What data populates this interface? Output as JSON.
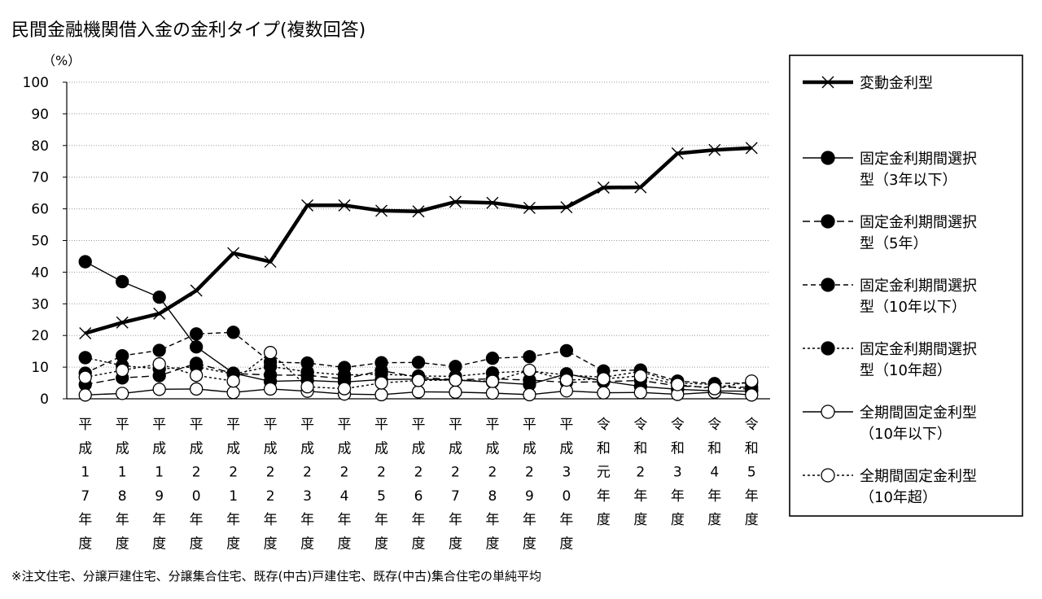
{
  "chart_data": {
    "type": "line",
    "title": "民間金融機関借入金の金利タイプ(複数回答)",
    "ylabel": "（%）",
    "ylim": [
      0,
      100
    ],
    "yticks": [
      0,
      10,
      20,
      30,
      40,
      50,
      60,
      70,
      80,
      90,
      100
    ],
    "grid": true,
    "legend_position": "right",
    "categories": [
      "平成17年度",
      "平成18年度",
      "平成19年度",
      "平成20年度",
      "平成21年度",
      "平成22年度",
      "平成23年度",
      "平成24年度",
      "平成25年度",
      "平成26年度",
      "平成27年度",
      "平成28年度",
      "平成29年度",
      "平成30年度",
      "令和元年度",
      "令和2年度",
      "令和3年度",
      "令和4年度",
      "令和5年度"
    ],
    "category_labels": [
      [
        "平",
        "成",
        "1",
        "7",
        "年",
        "度"
      ],
      [
        "平",
        "成",
        "1",
        "8",
        "年",
        "度"
      ],
      [
        "平",
        "成",
        "1",
        "9",
        "年",
        "度"
      ],
      [
        "平",
        "成",
        "2",
        "0",
        "年",
        "度"
      ],
      [
        "平",
        "成",
        "2",
        "1",
        "年",
        "度"
      ],
      [
        "平",
        "成",
        "2",
        "2",
        "年",
        "度"
      ],
      [
        "平",
        "成",
        "2",
        "3",
        "年",
        "度"
      ],
      [
        "平",
        "成",
        "2",
        "4",
        "年",
        "度"
      ],
      [
        "平",
        "成",
        "2",
        "5",
        "年",
        "度"
      ],
      [
        "平",
        "成",
        "2",
        "6",
        "年",
        "度"
      ],
      [
        "平",
        "成",
        "2",
        "7",
        "年",
        "度"
      ],
      [
        "平",
        "成",
        "2",
        "8",
        "年",
        "度"
      ],
      [
        "平",
        "成",
        "2",
        "9",
        "年",
        "度"
      ],
      [
        "平",
        "成",
        "3",
        "0",
        "年",
        "度"
      ],
      [
        "令",
        "和",
        "元",
        "年",
        "度"
      ],
      [
        "令",
        "和",
        "2",
        "年",
        "度"
      ],
      [
        "令",
        "和",
        "3",
        "年",
        "度"
      ],
      [
        "令",
        "和",
        "4",
        "年",
        "度"
      ],
      [
        "令",
        "和",
        "5",
        "年",
        "度"
      ]
    ],
    "series": [
      {
        "name": "変動金利型",
        "legend_lines": [
          "変動金利型"
        ],
        "line": "thick",
        "marker": "x",
        "values": [
          20.7,
          24.1,
          26.9,
          34.2,
          46.0,
          43.3,
          61.1,
          61.1,
          59.4,
          59.2,
          62.2,
          61.9,
          60.3,
          60.5,
          66.7,
          66.8,
          77.5,
          78.6,
          79.2
        ]
      },
      {
        "name": "固定金利期間選択型（3年以下）",
        "legend_lines": [
          "固定金利期間選択",
          "型（3年以下）"
        ],
        "line": "solid",
        "marker": "filled",
        "values": [
          43.3,
          37.0,
          32.1,
          16.4,
          8.1,
          5.5,
          5.8,
          5.3,
          6.1,
          6.2,
          5.9,
          5.3,
          4.5,
          7.9,
          5.6,
          3.9,
          3.0,
          2.5,
          2.4
        ]
      },
      {
        "name": "固定金利期間選択型（5年）",
        "legend_lines": [
          "固定金利期間選択",
          "型（5年）"
        ],
        "line": "dash",
        "marker": "filled",
        "values": [
          4.5,
          6.6,
          7.3,
          11.2,
          8.0,
          7.5,
          7.4,
          6.3,
          8.9,
          6.8,
          6.0,
          6.3,
          5.9,
          5.2,
          5.4,
          5.8,
          4.1,
          3.6,
          3.7
        ]
      },
      {
        "name": "固定金利期間選択型（10年以下）",
        "legend_lines": [
          "固定金利期間選択",
          "型（10年以下）"
        ],
        "line": "dashmed",
        "marker": "filled",
        "values": [
          8.1,
          13.6,
          15.3,
          20.5,
          21.0,
          11.6,
          11.3,
          9.9,
          11.4,
          11.5,
          10.2,
          12.8,
          13.3,
          15.2,
          8.8,
          9.1,
          5.6,
          4.8,
          5.0
        ]
      },
      {
        "name": "固定金利期間選択型（10年超）",
        "legend_lines": [
          "固定金利期間選択",
          "型（10年超）"
        ],
        "line": "dot",
        "marker": "filled",
        "values": [
          13.0,
          10.5,
          9.4,
          10.1,
          7.8,
          10.2,
          8.5,
          7.5,
          7.8,
          7.2,
          7.1,
          8.2,
          8.8,
          7.5,
          6.8,
          8.6,
          5.0,
          4.5,
          2.8
        ]
      },
      {
        "name": "全期間固定金利型（10年以下）",
        "legend_lines": [
          "全期間固定金利型",
          "（10年以下）"
        ],
        "line": "solid",
        "marker": "open",
        "values": [
          1.2,
          1.7,
          3.0,
          3.1,
          2.0,
          3.1,
          2.4,
          1.5,
          1.3,
          2.2,
          2.1,
          1.8,
          1.3,
          2.5,
          1.9,
          2.0,
          1.4,
          2.1,
          1.2
        ]
      },
      {
        "name": "全期間固定金利型（10年超）",
        "legend_lines": [
          "全期間固定金利型",
          "（10年超）"
        ],
        "line": "dot",
        "marker": "open",
        "values": [
          6.8,
          9.0,
          11.0,
          7.4,
          5.6,
          14.6,
          3.8,
          3.2,
          5.0,
          5.8,
          5.9,
          5.5,
          9.0,
          5.9,
          6.3,
          7.2,
          4.5,
          3.2,
          5.6
        ]
      }
    ]
  },
  "footnote": "※注文住宅、分譲戸建住宅、分譲集合住宅、既存(中古)戸建住宅、既存(中古)集合住宅の単純平均"
}
